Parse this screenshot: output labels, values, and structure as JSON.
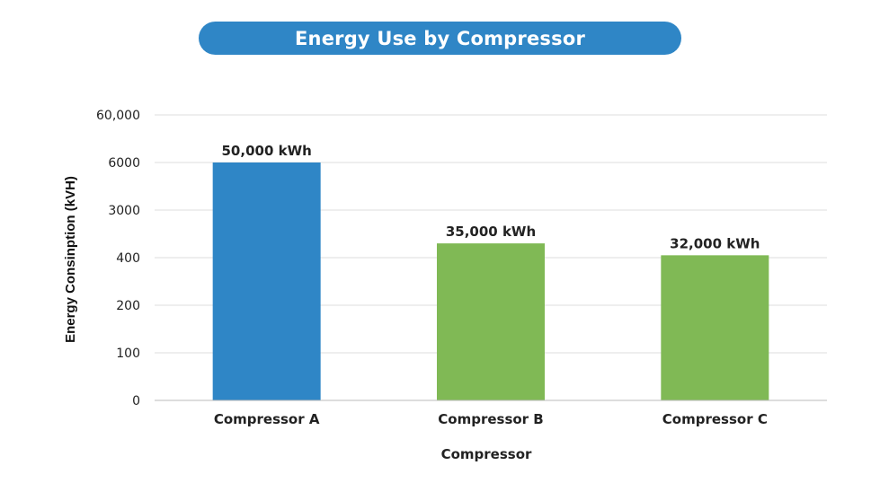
{
  "chart_data": {
    "type": "bar",
    "title": "Energy Use by Compressor",
    "xlabel": "Compressor",
    "ylabel": "Energy Consinption (kVH)",
    "categories": [
      "Compressor A",
      "Compressor B",
      "Compressor C"
    ],
    "values": [
      50000,
      35000,
      32000
    ],
    "data_labels": [
      "50,000 kWh",
      "35,000 kWh",
      "32,000 kWh"
    ],
    "bar_colors": [
      "#2f86c6",
      "#80b955",
      "#80b955"
    ],
    "y_tick_labels": [
      "0",
      "100",
      "200",
      "400",
      "3000",
      "6000",
      "60,000"
    ],
    "y_tick_position_values": [
      0,
      1,
      2,
      3,
      4,
      5,
      6
    ],
    "bar_position_values": [
      5,
      3.3,
      3.05
    ],
    "ylim": [
      0,
      6
    ],
    "grid": true,
    "legend": "none"
  }
}
